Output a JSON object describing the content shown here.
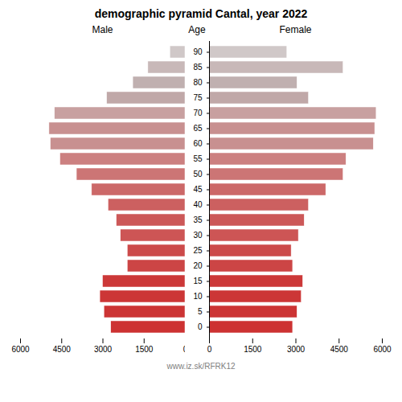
{
  "chart_data": {
    "type": "bar",
    "orientation": "horizontal",
    "title": "demographic pyramid Cantal, year 2022",
    "ylabel": "Age",
    "annotations": [
      "www.iz.sk/RFRK12"
    ],
    "categories": [
      0,
      5,
      10,
      15,
      20,
      25,
      30,
      35,
      40,
      45,
      50,
      55,
      60,
      65,
      70,
      75,
      80,
      85,
      90
    ],
    "series": [
      {
        "name": "Male",
        "values": [
          2700,
          2950,
          3100,
          3000,
          2100,
          2100,
          2350,
          2500,
          2800,
          3400,
          3950,
          4550,
          4900,
          4950,
          4750,
          2850,
          1900,
          1350,
          550
        ]
      },
      {
        "name": "Female",
        "values": [
          2900,
          3050,
          3200,
          3250,
          2900,
          2850,
          3100,
          3300,
          3450,
          4050,
          4650,
          4750,
          5700,
          5750,
          5800,
          3450,
          3050,
          4650,
          2700
        ]
      }
    ],
    "colors": [
      "#cd3232",
      "#cc3434",
      "#cc3636",
      "#cc3838",
      "#cc4545",
      "#cc4a4a",
      "#cd5555",
      "#cc5858",
      "#cc6060",
      "#cc6868",
      "#cc7575",
      "#cc8080",
      "#c89090",
      "#c89090",
      "#c8a0a0",
      "#c0a8a8",
      "#c0b0b0",
      "#c8b8b8",
      "#d0c8c8"
    ],
    "xlim": [
      0,
      6000
    ],
    "xticks": [
      0,
      1500,
      3000,
      4500,
      6000
    ]
  }
}
